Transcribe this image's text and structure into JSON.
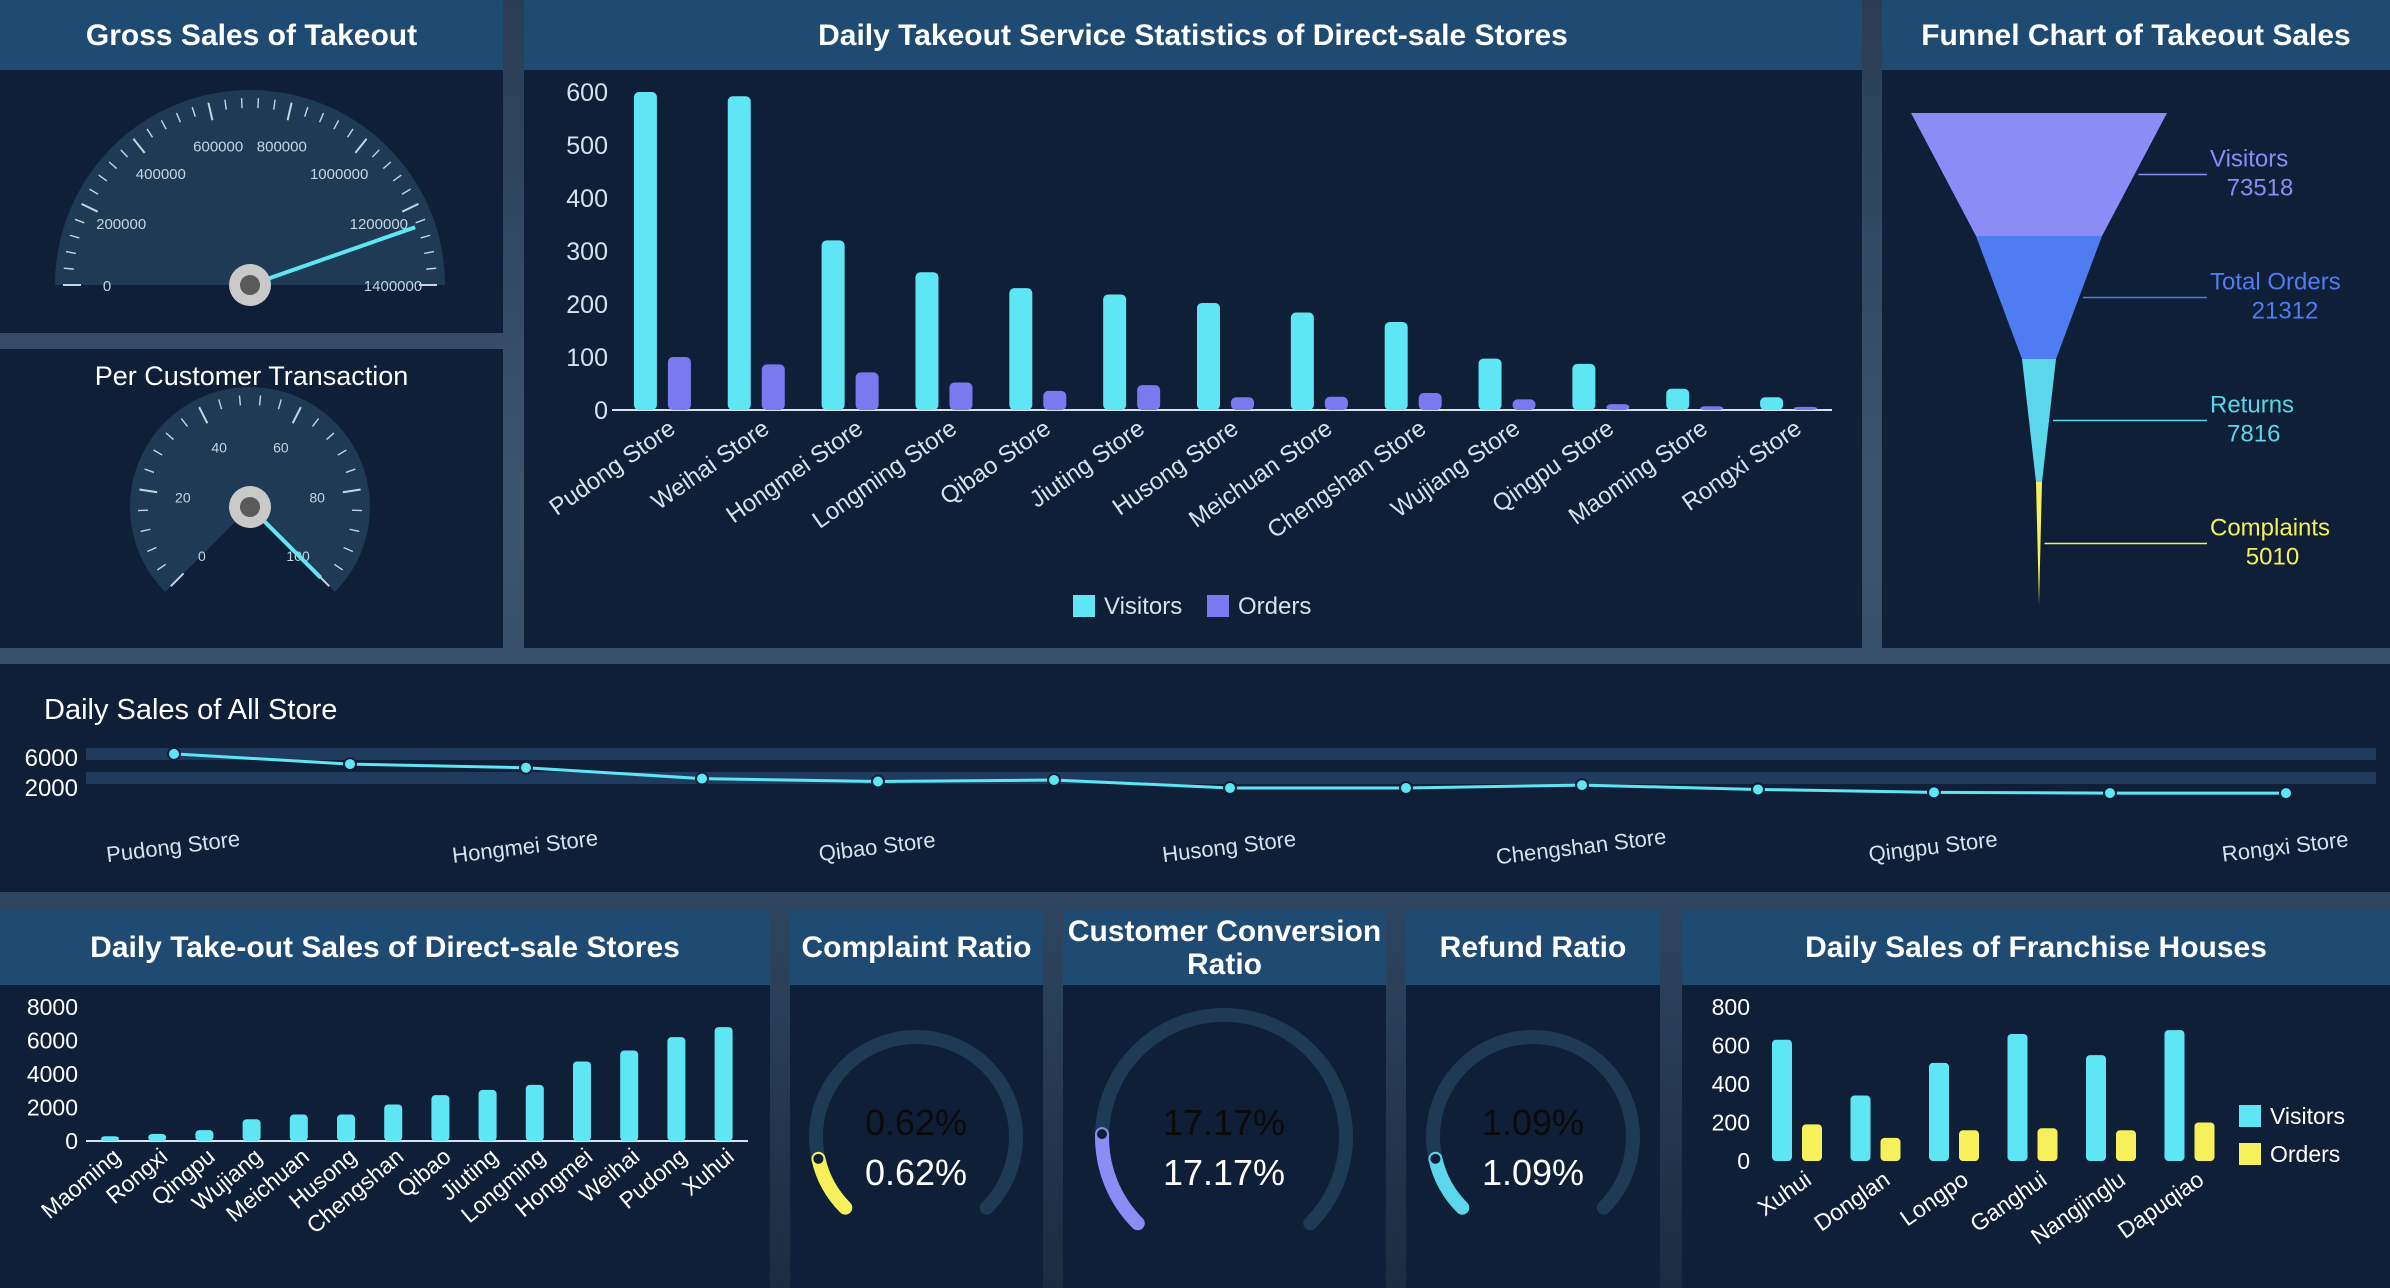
{
  "gauge1": {
    "title": "Gross Sales of Takeout",
    "ticks": [
      "0",
      "200000",
      "400000",
      "600000",
      "800000",
      "1000000",
      "1200000",
      "1400000"
    ],
    "min": 0,
    "max": 1400000,
    "value": 1250000
  },
  "gauge2": {
    "title": "Per Customer Transaction",
    "ticks": [
      "0",
      "20",
      "40",
      "60",
      "80",
      "100"
    ],
    "min": 0,
    "max": 100,
    "value": 100
  },
  "bar_main": {
    "title": "Daily Takeout Service Statistics of Direct-sale Stores",
    "legend": [
      "Visitors",
      "Orders"
    ]
  },
  "funnel": {
    "title": "Funnel Chart of Takeout Sales",
    "stages": [
      {
        "label": "Visitors",
        "value": "73518",
        "color": "#8b8cf6"
      },
      {
        "label": "Total Orders",
        "value": "21312",
        "color": "#4f7cf0"
      },
      {
        "label": "Returns",
        "value": "7816",
        "color": "#5bd6ea"
      },
      {
        "label": "Complaints",
        "value": "5010",
        "color": "#f6f05a"
      }
    ]
  },
  "line": {
    "title": "Daily Sales of All Store"
  },
  "bar_sales": {
    "title": "Daily Take-out Sales of Direct-sale Stores"
  },
  "complaint": {
    "title": "Complaint Ratio",
    "value_text": "0.62%",
    "value": 0.62,
    "color": "#f6f05a"
  },
  "conversion": {
    "title": "Customer Conversion Ratio",
    "value_text": "17.17%",
    "value": 17.17,
    "color": "#8b8cf6"
  },
  "refund": {
    "title": "Refund Ratio",
    "value_text": "1.09%",
    "value": 1.09,
    "color": "#5bd6ea"
  },
  "franchise": {
    "title": "Daily Sales of Franchise Houses",
    "legend": [
      "Visitors",
      "Orders"
    ]
  },
  "colors": {
    "cyan": "#5ee6f5",
    "purple": "#7b79ef",
    "yellow": "#f6f05a",
    "panel": "#0f1f38",
    "title_bg": "#1f4a72"
  },
  "chart_data": [
    {
      "type": "bar",
      "title": "Daily Takeout Service Statistics of Direct-sale Stores",
      "categories": [
        "Pudong Store",
        "Weihai Store",
        "Hongmei Store",
        "Longming Store",
        "Qibao Store",
        "Jiuting Store",
        "Husong Store",
        "Meichuan Store",
        "Chengshan Store",
        "Wujiang Store",
        "Qingpu Store",
        "Maoming Store",
        "Rongxi Store"
      ],
      "series": [
        {
          "name": "Visitors",
          "values": [
            600,
            592,
            320,
            260,
            230,
            218,
            202,
            184,
            166,
            97,
            87,
            40,
            24
          ]
        },
        {
          "name": "Orders",
          "values": [
            100,
            86,
            71,
            52,
            36,
            47,
            24,
            25,
            32,
            20,
            11,
            7,
            6
          ]
        }
      ],
      "ylim": [
        0,
        600
      ],
      "yticks": [
        "0",
        "100",
        "200",
        "300",
        "400",
        "500",
        "600"
      ]
    },
    {
      "type": "line",
      "title": "Daily Sales of All Store",
      "categories": [
        "Pudong Store",
        "",
        "Hongmei Store",
        "",
        "Qibao Store",
        "",
        "Husong Store",
        "",
        "Chengshan Store",
        "",
        "Qingpu Store",
        "",
        "Rongxi Store"
      ],
      "tick_labels": [
        "Pudong Store",
        "Hongmei Store",
        "Qibao Store",
        "Husong Store",
        "Chengshan Store",
        "Qingpu Store",
        "Rongxi Store"
      ],
      "values": [
        6700,
        5300,
        4800,
        3300,
        2900,
        3100,
        2000,
        2000,
        2400,
        1800,
        1400,
        1300,
        1300
      ],
      "yticks": [
        "2000",
        "6000"
      ]
    },
    {
      "type": "bar",
      "title": "Daily Take-out Sales of Direct-sale Stores",
      "categories": [
        "Maoming",
        "Rongxi",
        "Qingpu",
        "Wujiang",
        "Meichuan",
        "Husong",
        "Chengshan",
        "Qibao",
        "Jiuting",
        "Longming",
        "Hongmei",
        "Weihai",
        "Pudong",
        "Xuhui"
      ],
      "values": [
        280,
        420,
        650,
        1300,
        1580,
        1580,
        2180,
        2740,
        3050,
        3350,
        4750,
        5400,
        6200,
        6800
      ],
      "ylim": [
        0,
        8000
      ],
      "yticks": [
        "0",
        "2000",
        "4000",
        "6000",
        "8000"
      ]
    },
    {
      "type": "bar",
      "title": "Daily Sales of Franchise Houses",
      "categories": [
        "Xuhui",
        "Donglan",
        "Longpo",
        "Ganghui",
        "Nangjinglu",
        "Dapuqiao"
      ],
      "series": [
        {
          "name": "Visitors",
          "values": [
            630,
            340,
            510,
            660,
            550,
            680
          ]
        },
        {
          "name": "Orders",
          "values": [
            190,
            120,
            160,
            170,
            160,
            200
          ]
        }
      ],
      "ylim": [
        0,
        800
      ],
      "yticks": [
        "0",
        "200",
        "400",
        "600",
        "800"
      ]
    }
  ]
}
